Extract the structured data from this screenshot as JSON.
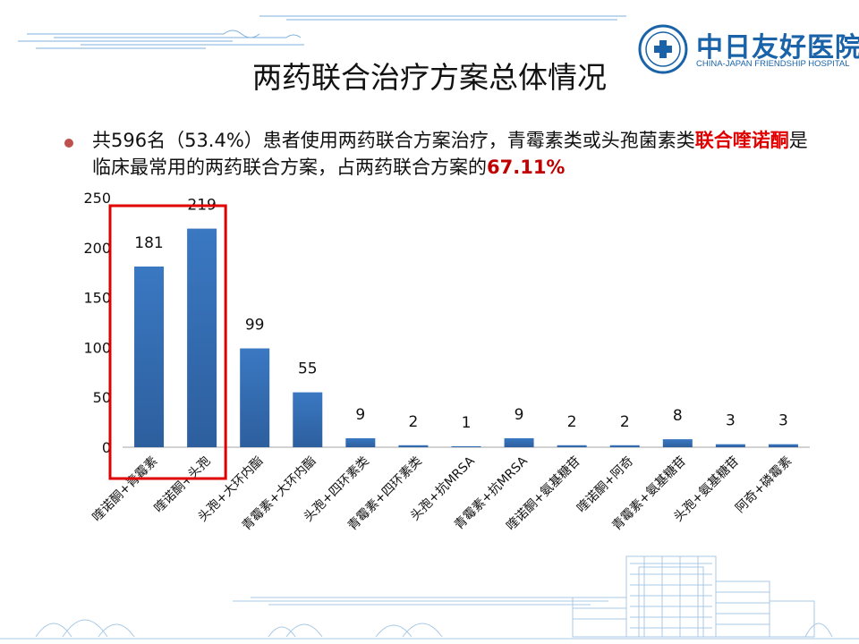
{
  "slide": {
    "title": "两药联合治疗方案总体情况",
    "bullet": {
      "part1": "共596名（53.4%）患者使用两药联合方案治疗，青霉素类或头孢菌素类",
      "highlight1": "联合喹诺酮",
      "part2": "是临床最常用的两药联合方案，占两药联合方案的",
      "highlight2": "67.11%"
    }
  },
  "logo": {
    "name_cn": "中日友好医院",
    "name_en": "CHINA-JAPAN FRIENDSHIP HOSPITAL"
  },
  "colors": {
    "bar": "#3a78c2",
    "highlight_box": "#e00000",
    "highlight_text": "#e00000",
    "bullet": "#c0504d",
    "brand": "#1a63a8"
  },
  "chart_data": {
    "type": "bar",
    "categories": [
      "喹诺酮+青霉素",
      "喹诺酮+头孢",
      "头孢+大环内酯",
      "青霉素+大环内酯",
      "头孢+四环素类",
      "青霉素+四环素类",
      "头孢+抗MRSA",
      "青霉素+抗MRSA",
      "喹诺酮+氨基糖苷",
      "喹诺酮+阿奇",
      "青霉素+氨基糖苷",
      "头孢+氨基糖苷",
      "阿奇+磷霉素"
    ],
    "values": [
      181,
      219,
      99,
      55,
      9,
      2,
      1,
      9,
      2,
      2,
      8,
      3,
      3
    ],
    "data_labels": [
      "181",
      "219",
      "99",
      "55",
      "9",
      "2",
      "1",
      "9",
      "2",
      "2",
      "8",
      "3",
      "3"
    ],
    "yticks": [
      "0",
      "50",
      "100",
      "150",
      "200",
      "250"
    ],
    "ylim": [
      0,
      250
    ],
    "grid": false,
    "highlight_categories": [
      "喹诺酮+青霉素",
      "喹诺酮+头孢"
    ]
  }
}
